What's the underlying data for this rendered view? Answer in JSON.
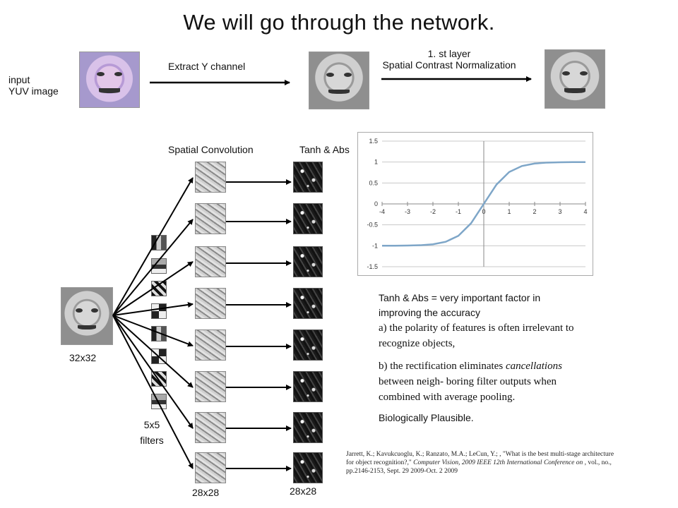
{
  "title": "We will go through the network.",
  "top_row": {
    "input_label_line1": "input",
    "input_label_line2": "YUV image",
    "extract_label": "Extract Y channel",
    "layer_label_line1": "1. st layer",
    "layer_label_line2": "Spatial Contrast Normalization"
  },
  "network": {
    "spatial_conv_label": "Spatial Convolution",
    "tanh_abs_label": "Tanh & Abs",
    "input_size": "32x32",
    "filters_line1": "5x5",
    "filters_line2": "filters",
    "conv_size": "28x28",
    "tanh_size": "28x28"
  },
  "chart_data": {
    "type": "line",
    "title": "",
    "xlabel": "",
    "ylabel": "",
    "xlim": [
      -4,
      4
    ],
    "ylim": [
      -1.5,
      1.5
    ],
    "x_ticks": [
      "-4",
      "-3",
      "-2",
      "-1",
      "0",
      "1",
      "2",
      "3",
      "4"
    ],
    "y_ticks": [
      "1.5",
      "1",
      "0.5",
      "0",
      "-0.5",
      "-1",
      "-1.5"
    ],
    "grid": true,
    "series": [
      {
        "name": "",
        "color": "#7ea6c8",
        "x": [
          -4,
          -3.5,
          -3,
          -2.5,
          -2,
          -1.5,
          -1,
          -0.5,
          0,
          0.5,
          1,
          1.5,
          2,
          2.5,
          3,
          3.5,
          4
        ],
        "y": [
          -0.999,
          -0.998,
          -0.995,
          -0.987,
          -0.964,
          -0.905,
          -0.762,
          -0.462,
          0,
          0.462,
          0.762,
          0.905,
          0.964,
          0.987,
          0.995,
          0.998,
          0.999
        ]
      }
    ]
  },
  "notes": {
    "heading_line1": "Tanh & Abs = very important factor in",
    "heading_line2": "improving the accuracy",
    "a_line1": "a) the polarity of features is often irrelevant to",
    "a_line2": "recognize objects,",
    "b_line1_pre": "b) the rectification eliminates ",
    "b_line1_em": "cancellations",
    "b_line2": "between neigh- boring filter outputs when",
    "b_line3": "combined with average pooling.",
    "bio": "Biologically Plausible."
  },
  "reference": {
    "line1": "Jarrett, K.; Kavukcuoglu, K.; Ranzato, M.A.; LeCun, Y.; , \"What is the best multi-stage architecture",
    "line2_pre": "for object recognition?,\" ",
    "line2_em": "Computer Vision, 2009 IEEE 12th International Conference on",
    "line2_post": " , vol., no.,",
    "line3": "pp.2146-2153, Sept. 29 2009-Oct. 2 2009"
  },
  "colors": {
    "curve": "#7ea6c8",
    "grid": "#c8c8c8"
  }
}
